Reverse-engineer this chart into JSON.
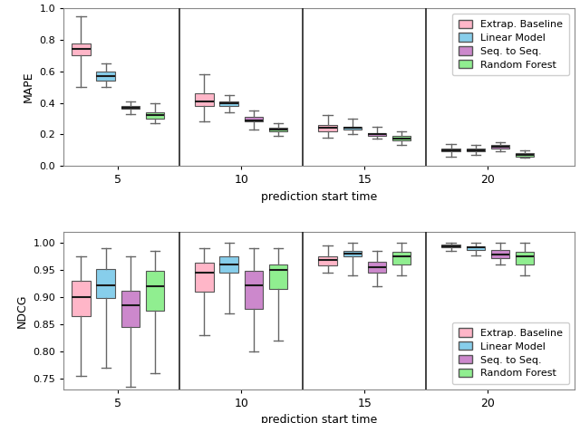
{
  "models": [
    "Extrap. Baseline",
    "Linear Model",
    "Seq. to Seq.",
    "Random Forest"
  ],
  "colors": [
    "#FFB6C8",
    "#87CEEB",
    "#CC88CC",
    "#90EE90"
  ],
  "mediancolor": "#1a1a1a",
  "whiskercolor": "#666666",
  "boxedge": "#555555",
  "xlabel": "prediction start time",
  "mape_ylabel": "MAPE",
  "ndcg_ylabel": "NDCG",
  "mape_ylim": [
    0.0,
    1.0
  ],
  "ndcg_ylim": [
    0.73,
    1.02
  ],
  "mape_yticks": [
    0.0,
    0.2,
    0.4,
    0.6,
    0.8,
    1.0
  ],
  "ndcg_yticks": [
    0.75,
    0.8,
    0.85,
    0.9,
    0.95,
    1.0
  ],
  "x_ticks": [
    2.5,
    7.5,
    12.5,
    17.5
  ],
  "x_ticklabels": [
    "5",
    "10",
    "15",
    "20"
  ],
  "x_lim": [
    0.3,
    21.0
  ],
  "vlines": [
    5.0,
    10.0,
    15.0
  ],
  "box_width": 0.75,
  "mape_boxes": [
    {
      "model": "Extrap. Baseline",
      "x": 1.0,
      "wlo": 0.5,
      "q1": 0.7,
      "med": 0.74,
      "q3": 0.78,
      "whi": 0.95
    },
    {
      "model": "Linear Model",
      "x": 2.0,
      "wlo": 0.5,
      "q1": 0.54,
      "med": 0.57,
      "q3": 0.6,
      "whi": 0.65
    },
    {
      "model": "Seq. to Seq.",
      "x": 3.0,
      "wlo": 0.33,
      "q1": 0.36,
      "med": 0.37,
      "q3": 0.38,
      "whi": 0.41
    },
    {
      "model": "Random Forest",
      "x": 4.0,
      "wlo": 0.27,
      "q1": 0.3,
      "med": 0.32,
      "q3": 0.34,
      "whi": 0.4
    },
    {
      "model": "Extrap. Baseline",
      "x": 6.0,
      "wlo": 0.28,
      "q1": 0.38,
      "med": 0.41,
      "q3": 0.46,
      "whi": 0.58
    },
    {
      "model": "Linear Model",
      "x": 7.0,
      "wlo": 0.34,
      "q1": 0.38,
      "med": 0.4,
      "q3": 0.41,
      "whi": 0.45
    },
    {
      "model": "Seq. to Seq.",
      "x": 8.0,
      "wlo": 0.23,
      "q1": 0.28,
      "med": 0.29,
      "q3": 0.31,
      "whi": 0.35
    },
    {
      "model": "Random Forest",
      "x": 9.0,
      "wlo": 0.19,
      "q1": 0.22,
      "med": 0.23,
      "q3": 0.24,
      "whi": 0.27
    },
    {
      "model": "Extrap. Baseline",
      "x": 11.0,
      "wlo": 0.18,
      "q1": 0.22,
      "med": 0.24,
      "q3": 0.26,
      "whi": 0.32
    },
    {
      "model": "Linear Model",
      "x": 12.0,
      "wlo": 0.2,
      "q1": 0.23,
      "med": 0.24,
      "q3": 0.25,
      "whi": 0.3
    },
    {
      "model": "Seq. to Seq.",
      "x": 13.0,
      "wlo": 0.17,
      "q1": 0.19,
      "med": 0.2,
      "q3": 0.21,
      "whi": 0.25
    },
    {
      "model": "Random Forest",
      "x": 14.0,
      "wlo": 0.13,
      "q1": 0.16,
      "med": 0.17,
      "q3": 0.19,
      "whi": 0.22
    },
    {
      "model": "Extrap. Baseline",
      "x": 16.0,
      "wlo": 0.06,
      "q1": 0.09,
      "med": 0.1,
      "q3": 0.11,
      "whi": 0.14
    },
    {
      "model": "Linear Model",
      "x": 17.0,
      "wlo": 0.07,
      "q1": 0.09,
      "med": 0.1,
      "q3": 0.11,
      "whi": 0.13
    },
    {
      "model": "Seq. to Seq.",
      "x": 18.0,
      "wlo": 0.09,
      "q1": 0.11,
      "med": 0.12,
      "q3": 0.13,
      "whi": 0.15
    },
    {
      "model": "Random Forest",
      "x": 19.0,
      "wlo": 0.05,
      "q1": 0.06,
      "med": 0.07,
      "q3": 0.08,
      "whi": 0.1
    }
  ],
  "ndcg_boxes": [
    {
      "model": "Extrap. Baseline",
      "x": 1.0,
      "wlo": 0.755,
      "q1": 0.865,
      "med": 0.9,
      "q3": 0.93,
      "whi": 0.975
    },
    {
      "model": "Linear Model",
      "x": 2.0,
      "wlo": 0.77,
      "q1": 0.898,
      "med": 0.922,
      "q3": 0.952,
      "whi": 0.99
    },
    {
      "model": "Seq. to Seq.",
      "x": 3.0,
      "wlo": 0.735,
      "q1": 0.845,
      "med": 0.885,
      "q3": 0.912,
      "whi": 0.975
    },
    {
      "model": "Random Forest",
      "x": 4.0,
      "wlo": 0.76,
      "q1": 0.875,
      "med": 0.92,
      "q3": 0.948,
      "whi": 0.985
    },
    {
      "model": "Extrap. Baseline",
      "x": 6.0,
      "wlo": 0.83,
      "q1": 0.91,
      "med": 0.945,
      "q3": 0.963,
      "whi": 0.99
    },
    {
      "model": "Linear Model",
      "x": 7.0,
      "wlo": 0.87,
      "q1": 0.945,
      "med": 0.96,
      "q3": 0.975,
      "whi": 1.0
    },
    {
      "model": "Seq. to Seq.",
      "x": 8.0,
      "wlo": 0.8,
      "q1": 0.878,
      "med": 0.922,
      "q3": 0.948,
      "whi": 0.99
    },
    {
      "model": "Random Forest",
      "x": 9.0,
      "wlo": 0.82,
      "q1": 0.915,
      "med": 0.95,
      "q3": 0.96,
      "whi": 0.99
    },
    {
      "model": "Extrap. Baseline",
      "x": 11.0,
      "wlo": 0.945,
      "q1": 0.958,
      "med": 0.968,
      "q3": 0.975,
      "whi": 0.995
    },
    {
      "model": "Linear Model",
      "x": 12.0,
      "wlo": 0.94,
      "q1": 0.975,
      "med": 0.98,
      "q3": 0.985,
      "whi": 1.0
    },
    {
      "model": "Seq. to Seq.",
      "x": 13.0,
      "wlo": 0.92,
      "q1": 0.945,
      "med": 0.955,
      "q3": 0.965,
      "whi": 0.985
    },
    {
      "model": "Random Forest",
      "x": 14.0,
      "wlo": 0.94,
      "q1": 0.96,
      "med": 0.975,
      "q3": 0.983,
      "whi": 1.0
    },
    {
      "model": "Extrap. Baseline",
      "x": 16.0,
      "wlo": 0.985,
      "q1": 0.991,
      "med": 0.993,
      "q3": 0.996,
      "whi": 1.0
    },
    {
      "model": "Linear Model",
      "x": 17.0,
      "wlo": 0.977,
      "q1": 0.987,
      "med": 0.991,
      "q3": 0.994,
      "whi": 1.0
    },
    {
      "model": "Seq. to Seq.",
      "x": 18.0,
      "wlo": 0.96,
      "q1": 0.972,
      "med": 0.978,
      "q3": 0.986,
      "whi": 1.0
    },
    {
      "model": "Random Forest",
      "x": 19.0,
      "wlo": 0.94,
      "q1": 0.96,
      "med": 0.975,
      "q3": 0.983,
      "whi": 1.0
    }
  ]
}
